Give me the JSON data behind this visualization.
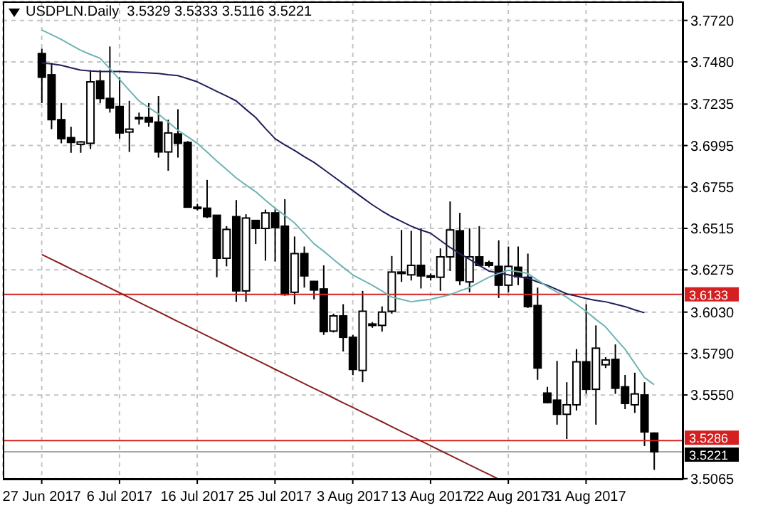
{
  "chart_data": {
    "type": "candlestick",
    "title": "USDPLN.Daily  3.5329 3.5333 3.5116 3.5221",
    "categories": [
      "27 Jun 2017",
      null,
      null,
      null,
      null,
      null,
      null,
      null,
      "6 Jul 2017",
      null,
      null,
      null,
      null,
      null,
      null,
      null,
      "16 Jul 2017",
      null,
      null,
      null,
      null,
      null,
      null,
      null,
      "25 Jul 2017",
      null,
      null,
      null,
      null,
      null,
      null,
      null,
      "3 Aug 2017",
      null,
      null,
      null,
      null,
      null,
      null,
      null,
      "13 Aug 2017",
      null,
      null,
      null,
      null,
      null,
      null,
      null,
      "22 Aug 2017",
      null,
      null,
      null,
      null,
      null,
      null,
      null,
      "31 Aug 2017",
      null,
      null,
      null,
      null,
      null,
      null,
      null
    ],
    "ylim": [
      3.506,
      3.783
    ],
    "yticks": [
      {
        "value": 3.772,
        "label": "3.7720"
      },
      {
        "value": 3.748,
        "label": "3.7480"
      },
      3.7235,
      {
        "value": 3.6995,
        "label": "3.6995"
      },
      3.6755,
      3.6515,
      3.6275,
      {
        "value": 3.603,
        "label": "3.6030"
      },
      {
        "value": 3.579,
        "label": "3.5790"
      },
      {
        "value": 3.555,
        "label": "3.5550"
      },
      3.5065
    ],
    "grid": true,
    "series": [
      {
        "type": "line",
        "color": "#1f1f5c",
        "values": [
          3.7473,
          3.7468,
          3.746,
          3.7446,
          3.7432,
          3.7427,
          3.7424,
          3.7424,
          3.7424,
          3.7421,
          3.7419,
          3.7416,
          3.7413,
          3.7405,
          3.74,
          3.7383,
          3.7364,
          3.7337,
          3.7309,
          3.7282,
          3.7254,
          3.7205,
          3.7158,
          3.7095,
          3.7035,
          3.6999,
          3.6967,
          3.6931,
          3.6898,
          3.6857,
          3.6816,
          3.6775,
          3.6734,
          3.6693,
          3.6652,
          3.6616,
          3.6583,
          3.6556,
          3.6528,
          3.6506,
          3.6487,
          3.6446,
          3.6405,
          3.6369,
          3.6336,
          3.6301,
          3.6268,
          3.6257,
          3.6246,
          3.6235,
          3.6227,
          3.6205,
          3.6186,
          3.6161,
          3.6136,
          3.6123,
          3.6109,
          3.6098,
          3.609,
          3.6076,
          3.6062,
          3.6043,
          3.6026,
          null
        ]
      },
      {
        "type": "line",
        "color": "#6fb3b3",
        "values": [
          3.7665,
          3.7638,
          3.761,
          3.7578,
          3.7547,
          3.7523,
          3.7501,
          3.7441,
          3.7378,
          3.7315,
          3.7254,
          3.7216,
          3.7178,
          3.7131,
          3.7084,
          3.7046,
          3.7008,
          3.6958,
          3.6906,
          3.6857,
          3.6808,
          3.6767,
          3.6728,
          3.6679,
          3.6632,
          3.6591,
          3.6547,
          3.6487,
          3.6427,
          3.6383,
          3.6336,
          3.629,
          3.6246,
          3.6216,
          3.6186,
          3.6153,
          3.6117,
          3.6104,
          3.609,
          3.6098,
          3.6104,
          3.6117,
          3.6131,
          3.6153,
          3.6172,
          3.6202,
          3.6232,
          3.6254,
          3.6273,
          3.6265,
          3.6254,
          3.6216,
          3.6178,
          3.6147,
          3.6117,
          3.6076,
          3.6035,
          3.5988,
          3.5945,
          3.5879,
          3.5816,
          3.5734,
          3.5651,
          3.561
        ]
      },
      {
        "type": "line",
        "color": "#8b2020",
        "values": [
          3.6364,
          3.6336,
          3.6309,
          3.6281,
          3.6253,
          3.6226,
          3.6198,
          3.617,
          3.6142,
          3.6115,
          3.6087,
          3.6059,
          3.6032,
          3.6004,
          3.5976,
          3.5949,
          3.5921,
          3.5893,
          3.5865,
          3.5838,
          3.581,
          3.5782,
          3.5755,
          3.5727,
          3.5699,
          3.5672,
          3.5644,
          3.5616,
          3.5588,
          3.5561,
          3.5533,
          3.5505,
          3.5478,
          3.545,
          3.5422,
          3.5395,
          3.5367,
          3.5339,
          3.5311,
          3.5284,
          3.5256,
          3.5228,
          3.5201,
          3.5173,
          3.5145,
          3.5117,
          3.509,
          3.5062,
          null,
          null,
          null,
          null,
          null,
          null,
          null,
          null,
          null,
          null,
          null,
          null,
          null,
          null,
          null,
          null
        ]
      },
      {
        "type": "candlestick",
        "color": "#000000",
        "ohlc": [
          [
            3.7528,
            3.7556,
            3.7241,
            3.7391
          ],
          [
            3.7405,
            3.7474,
            3.709,
            3.7145
          ],
          [
            3.7145,
            3.7241,
            3.7008,
            3.7035
          ],
          [
            3.7041,
            3.7104,
            3.6953,
            3.7013
          ],
          [
            3.7002,
            3.7021,
            3.6953,
            3.7016
          ],
          [
            3.7008,
            3.7432,
            3.6975,
            3.7364
          ],
          [
            3.7369,
            3.7432,
            3.7241,
            3.7268
          ],
          [
            3.7268,
            3.7569,
            3.7186,
            3.7213
          ],
          [
            3.7221,
            3.7391,
            3.7035,
            3.7068
          ],
          [
            3.7073,
            3.7254,
            3.6958,
            3.709
          ],
          [
            3.7158,
            3.7186,
            3.7117,
            3.7156
          ],
          [
            3.7158,
            3.7241,
            3.7104,
            3.7131
          ],
          [
            3.7131,
            3.7282,
            3.6925,
            3.6958
          ],
          [
            3.6958,
            3.7145,
            3.6849,
            3.7068
          ],
          [
            3.7062,
            3.7205,
            3.6925,
            3.7008
          ],
          [
            3.7013,
            3.7021,
            3.6638,
            3.6638
          ],
          [
            3.6638,
            3.6657,
            3.6619,
            3.6635
          ],
          [
            3.6632,
            3.6796,
            3.6575,
            3.6583
          ],
          [
            3.6591,
            3.6591,
            3.6232,
            3.6342
          ],
          [
            3.6342,
            3.6528,
            3.6295,
            3.6509
          ],
          [
            3.6583,
            3.6679,
            3.609,
            3.6153
          ],
          [
            3.6153,
            3.6597,
            3.609,
            3.6575
          ],
          [
            3.6561,
            3.6561,
            3.6424,
            3.6515
          ],
          [
            3.6515,
            3.6624,
            3.6328,
            3.6605
          ],
          [
            3.6605,
            3.6624,
            3.6323,
            3.652
          ],
          [
            3.6528,
            3.6684,
            3.6125,
            3.6131
          ],
          [
            3.6145,
            3.6468,
            3.6076,
            3.6369
          ],
          [
            3.6369,
            3.641,
            3.6172,
            3.624
          ],
          [
            3.6208,
            3.6208,
            3.6104,
            3.6158
          ],
          [
            3.6164,
            3.6301,
            3.5898,
            3.5917
          ],
          [
            3.592,
            3.6021,
            3.5912,
            3.6008
          ],
          [
            3.6008,
            3.6076,
            3.5802,
            3.5884
          ],
          [
            3.5884,
            3.5898,
            3.5665,
            3.5698
          ],
          [
            3.5692,
            3.6153,
            3.5624,
            3.6035
          ],
          [
            3.5958,
            3.5972,
            3.5939,
            3.5961
          ],
          [
            3.5953,
            3.6063,
            3.5917,
            3.603
          ],
          [
            3.6035,
            3.6355,
            3.6021,
            3.6262
          ],
          [
            3.6262,
            3.6506,
            3.6205,
            3.6257
          ],
          [
            3.6246,
            3.6501,
            3.6213,
            3.6301
          ],
          [
            3.6301,
            3.6515,
            3.6167,
            3.624
          ],
          [
            3.624,
            3.6254,
            3.6213,
            3.6238
          ],
          [
            3.6232,
            3.6399,
            3.6153,
            3.635
          ],
          [
            3.635,
            3.6671,
            3.6268,
            3.6506
          ],
          [
            3.6501,
            3.6605,
            3.6186,
            3.6213
          ],
          [
            3.6205,
            3.6515,
            3.6145,
            3.635
          ],
          [
            3.635,
            3.6528,
            3.6295,
            3.6301
          ],
          [
            3.6317,
            3.6328,
            3.629,
            3.6301
          ],
          [
            3.6295,
            3.6446,
            3.6112,
            3.6186
          ],
          [
            3.6186,
            3.641,
            3.6145,
            3.6295
          ],
          [
            3.629,
            3.641,
            3.6186,
            3.6235
          ],
          [
            3.6232,
            3.6369,
            3.6054,
            3.6062
          ],
          [
            3.6068,
            3.6172,
            3.5638,
            3.5706
          ],
          [
            3.5561,
            3.5597,
            3.5501,
            3.5506
          ],
          [
            3.552,
            3.5747,
            3.5378,
            3.5438
          ],
          [
            3.5438,
            3.5624,
            3.5295,
            3.5493
          ],
          [
            3.5493,
            3.5816,
            3.546,
            3.5742
          ],
          [
            3.5742,
            3.6076,
            3.5556,
            3.5583
          ],
          [
            3.5583,
            3.5953,
            3.5378,
            3.5821
          ],
          [
            3.5725,
            3.5769,
            3.5706,
            3.5753
          ],
          [
            3.5756,
            3.5843,
            3.5556,
            3.5589
          ],
          [
            3.5597,
            3.5666,
            3.5468,
            3.5501
          ],
          [
            3.5493,
            3.5679,
            3.5446,
            3.5556
          ],
          [
            3.555,
            3.5624,
            3.5254,
            3.5336
          ],
          [
            3.5329,
            3.5333,
            3.5116,
            3.5221
          ]
        ]
      }
    ],
    "ref_lines": [
      {
        "axis": "y",
        "value": 3.6133,
        "label": "3.6133",
        "color": "#d42020"
      },
      {
        "axis": "y",
        "value": 3.5286,
        "label": "3.5286",
        "color": "#d42020"
      },
      {
        "axis": "y",
        "value": 3.5221,
        "label": "3.5221",
        "color": "#000000"
      }
    ]
  }
}
